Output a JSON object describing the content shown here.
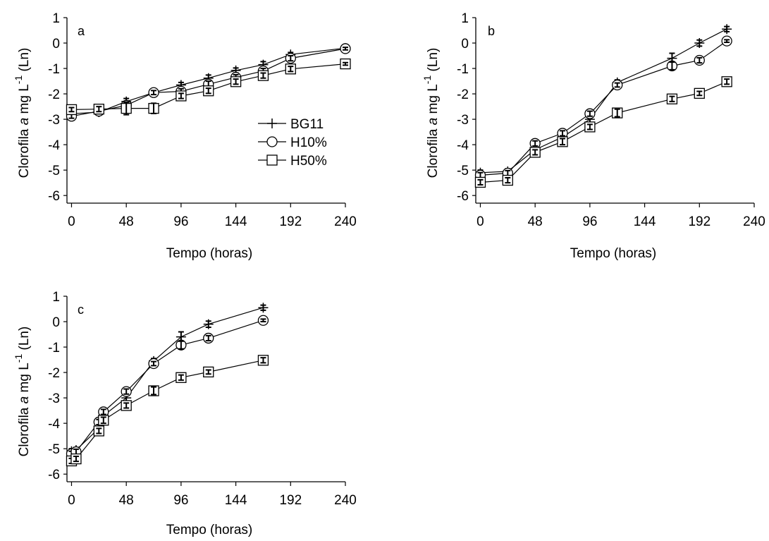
{
  "chart_data": [
    {
      "type": "line",
      "panel_label": "a",
      "xlabel": "Tempo (horas)",
      "ylabel": "Clorofila a mg L-1 (Ln)",
      "xlim": [
        -4,
        240
      ],
      "ylim": [
        -6.3,
        1
      ],
      "xticks": [
        0,
        48,
        96,
        144,
        192,
        240
      ],
      "yticks": [
        -6,
        -5,
        -4,
        -3,
        -2,
        -1,
        0,
        1
      ],
      "legend": {
        "position": "center-right",
        "entries": [
          "BG11",
          "H10%",
          "H50%"
        ]
      },
      "series": [
        {
          "name": "BG11",
          "marker": "plus",
          "x": [
            0,
            24,
            48,
            72,
            96,
            120,
            144,
            168,
            192,
            240
          ],
          "y": [
            -2.78,
            -2.72,
            -2.3,
            -1.95,
            -1.65,
            -1.38,
            -1.08,
            -0.85,
            -0.45,
            -0.2
          ],
          "err": [
            0.1,
            0.1,
            0.12,
            0.08,
            0.1,
            0.12,
            0.1,
            0.12,
            0.08,
            0.05
          ]
        },
        {
          "name": "H10%",
          "marker": "circle",
          "x": [
            0,
            24,
            48,
            72,
            96,
            120,
            144,
            168,
            192,
            240
          ],
          "y": [
            -2.88,
            -2.68,
            -2.45,
            -1.95,
            -1.9,
            -1.62,
            -1.35,
            -1.1,
            -0.6,
            -0.22
          ],
          "err": [
            0.08,
            0.1,
            0.12,
            0.08,
            0.1,
            0.12,
            0.1,
            0.1,
            0.1,
            0.05
          ]
        },
        {
          "name": "H50%",
          "marker": "square",
          "x": [
            0,
            24,
            48,
            72,
            96,
            120,
            144,
            168,
            192,
            240
          ],
          "y": [
            -2.62,
            -2.6,
            -2.57,
            -2.57,
            -2.08,
            -1.88,
            -1.52,
            -1.28,
            -1.02,
            -0.82
          ],
          "err": [
            0.08,
            0.1,
            0.25,
            0.2,
            0.1,
            0.1,
            0.1,
            0.1,
            0.1,
            0.05
          ]
        }
      ]
    },
    {
      "type": "line",
      "panel_label": "b",
      "xlabel": "Tempo (horas)",
      "ylabel": "Clorofila a mg L-1 (Ln)",
      "xlim": [
        -4,
        240
      ],
      "ylim": [
        -6.3,
        1
      ],
      "xticks": [
        0,
        48,
        96,
        144,
        192,
        240
      ],
      "yticks": [
        -6,
        -5,
        -4,
        -3,
        -2,
        -1,
        0,
        1
      ],
      "series": [
        {
          "name": "BG11",
          "marker": "plus",
          "x": [
            0,
            24,
            48,
            72,
            96,
            120,
            168,
            192,
            216
          ],
          "y": [
            -5.1,
            -5.05,
            -4.2,
            -3.7,
            -3.0,
            -1.55,
            -0.6,
            0.0,
            0.55
          ],
          "err": [
            0.1,
            0.1,
            0.15,
            0.1,
            0.15,
            0.1,
            0.2,
            0.12,
            0.1
          ]
        },
        {
          "name": "H10%",
          "marker": "circle",
          "x": [
            0,
            24,
            48,
            72,
            96,
            120,
            168,
            192,
            216
          ],
          "y": [
            -5.2,
            -5.12,
            -3.95,
            -3.55,
            -2.78,
            -1.65,
            -0.9,
            -0.68,
            0.08
          ],
          "err": [
            0.1,
            0.1,
            0.1,
            0.1,
            0.1,
            0.08,
            0.15,
            0.1,
            0.05
          ]
        },
        {
          "name": "H50%",
          "marker": "square",
          "x": [
            0,
            24,
            48,
            72,
            96,
            120,
            168,
            192,
            216
          ],
          "y": [
            -5.48,
            -5.4,
            -4.3,
            -3.88,
            -3.3,
            -2.75,
            -2.2,
            -1.98,
            -1.52
          ],
          "err": [
            0.1,
            0.1,
            0.1,
            0.12,
            0.1,
            0.15,
            0.1,
            0.08,
            0.1
          ]
        }
      ]
    },
    {
      "type": "line",
      "panel_label": "c",
      "xlabel": "Tempo (horas)",
      "ylabel": "Clorofila a mg L-1 (Ln)",
      "xlim": [
        -4,
        240
      ],
      "ylim": [
        -6.3,
        1
      ],
      "xticks": [
        0,
        48,
        96,
        144,
        192,
        240
      ],
      "yticks": [
        -6,
        -5,
        -4,
        -3,
        -2,
        -1,
        0,
        1
      ],
      "series": [
        {
          "name": "BG11",
          "marker": "plus",
          "x": [
            0,
            4,
            24,
            28,
            48,
            72,
            96,
            120,
            168
          ],
          "y": [
            -5.1,
            -5.05,
            -4.2,
            -3.7,
            -3.0,
            -1.55,
            -0.6,
            -0.1,
            0.55
          ],
          "err": [
            0.1,
            0.1,
            0.15,
            0.1,
            0.2,
            0.1,
            0.2,
            0.12,
            0.1
          ]
        },
        {
          "name": "H10%",
          "marker": "circle",
          "x": [
            0,
            4,
            24,
            28,
            48,
            72,
            96,
            120,
            168
          ],
          "y": [
            -5.2,
            -5.12,
            -3.95,
            -3.55,
            -2.75,
            -1.65,
            -0.92,
            -0.65,
            0.05
          ],
          "err": [
            0.1,
            0.1,
            0.1,
            0.1,
            0.1,
            0.08,
            0.15,
            0.1,
            0.05
          ]
        },
        {
          "name": "H50%",
          "marker": "square",
          "x": [
            0,
            4,
            24,
            28,
            48,
            72,
            96,
            120,
            168
          ],
          "y": [
            -5.48,
            -5.4,
            -4.3,
            -3.88,
            -3.3,
            -2.72,
            -2.2,
            -1.98,
            -1.52
          ],
          "err": [
            0.1,
            0.1,
            0.1,
            0.12,
            0.1,
            0.15,
            0.1,
            0.08,
            0.1
          ]
        }
      ]
    }
  ]
}
